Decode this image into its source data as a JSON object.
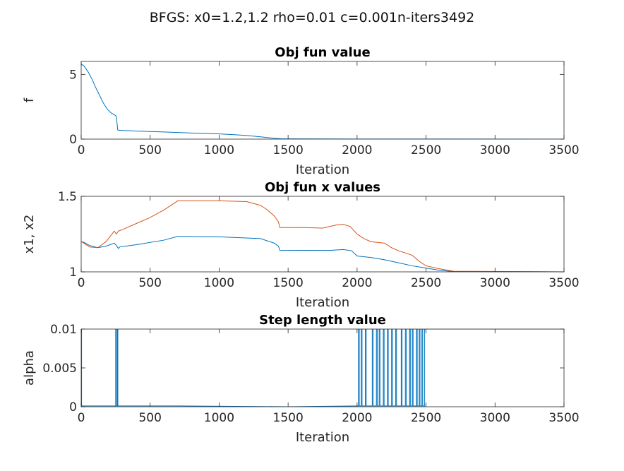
{
  "figure": {
    "suptitle": "BFGS: x0=1.2,1.2 rho=0.01 c=0.001n-iters3492"
  },
  "colors": {
    "series1": "#0072bd",
    "series2": "#d95319",
    "axis": "#262626"
  },
  "chart_data": [
    {
      "type": "line",
      "title": "Obj fun value",
      "xlabel": "Iteration",
      "ylabel": "f",
      "xlim": [
        0,
        3500
      ],
      "ylim": [
        0,
        6
      ],
      "xticks": [
        0,
        500,
        1000,
        1500,
        2000,
        2500,
        3000,
        3500
      ],
      "xtick_labels": [
        "0",
        "500",
        "1000",
        "1500",
        "2000",
        "2500",
        "3000",
        "3500"
      ],
      "yticks": [
        0,
        5
      ],
      "ytick_labels": [
        "0",
        "5"
      ],
      "series": [
        {
          "color": "#0072bd",
          "x": [
            0,
            20,
            50,
            80,
            100,
            130,
            160,
            190,
            220,
            245,
            250,
            255,
            265,
            280,
            400,
            600,
            800,
            1000,
            1100,
            1200,
            1300,
            1400,
            1450,
            1500,
            2000,
            3500
          ],
          "y": [
            5.8,
            5.65,
            5.2,
            4.6,
            4.1,
            3.45,
            2.8,
            2.3,
            2.0,
            1.85,
            1.8,
            1.75,
            0.7,
            0.68,
            0.62,
            0.55,
            0.47,
            0.4,
            0.35,
            0.28,
            0.18,
            0.06,
            0.03,
            0.02,
            0.01,
            0.0
          ]
        }
      ]
    },
    {
      "type": "line",
      "title": "Obj fun x values",
      "xlabel": "Iteration",
      "ylabel": "x1, x2",
      "xlim": [
        0,
        3500
      ],
      "ylim": [
        1,
        1.5
      ],
      "xticks": [
        0,
        500,
        1000,
        1500,
        2000,
        2500,
        3000,
        3500
      ],
      "xtick_labels": [
        "0",
        "500",
        "1000",
        "1500",
        "2000",
        "2500",
        "3000",
        "3500"
      ],
      "yticks": [
        1,
        1.5
      ],
      "ytick_labels": [
        "1",
        "1.5"
      ],
      "series": [
        {
          "color": "#0072bd",
          "x": [
            0,
            20,
            60,
            120,
            180,
            240,
            250,
            270,
            280,
            400,
            600,
            700,
            1000,
            1300,
            1400,
            1430,
            1440,
            1800,
            1900,
            1960,
            2000,
            2100,
            2200,
            2300,
            2400,
            2500,
            2600,
            2700,
            3500
          ],
          "y": [
            1.2,
            1.195,
            1.175,
            1.16,
            1.17,
            1.19,
            1.18,
            1.155,
            1.165,
            1.18,
            1.21,
            1.235,
            1.232,
            1.22,
            1.19,
            1.17,
            1.143,
            1.142,
            1.148,
            1.14,
            1.105,
            1.095,
            1.08,
            1.06,
            1.04,
            1.025,
            1.01,
            1.002,
            1.0
          ]
        },
        {
          "color": "#d95319",
          "x": [
            0,
            20,
            60,
            120,
            180,
            240,
            255,
            270,
            300,
            400,
            500,
            600,
            700,
            1000,
            1200,
            1300,
            1350,
            1400,
            1430,
            1440,
            1600,
            1750,
            1800,
            1850,
            1900,
            1950,
            2000,
            2050,
            2100,
            2200,
            2250,
            2300,
            2400,
            2450,
            2500,
            2600,
            2700,
            3500
          ],
          "y": [
            1.2,
            1.19,
            1.165,
            1.16,
            1.2,
            1.27,
            1.25,
            1.27,
            1.28,
            1.32,
            1.36,
            1.41,
            1.47,
            1.47,
            1.465,
            1.44,
            1.41,
            1.37,
            1.33,
            1.293,
            1.293,
            1.29,
            1.3,
            1.31,
            1.315,
            1.3,
            1.25,
            1.22,
            1.2,
            1.19,
            1.16,
            1.14,
            1.11,
            1.07,
            1.04,
            1.02,
            1.004,
            1.0
          ]
        }
      ]
    },
    {
      "type": "line",
      "title": "Step length value",
      "xlabel": "Iteration",
      "ylabel": "alpha",
      "xlim": [
        0,
        3500
      ],
      "ylim": [
        0,
        0.01
      ],
      "xticks": [
        0,
        500,
        1000,
        1500,
        2000,
        2500,
        3000,
        3500
      ],
      "xtick_labels": [
        "0",
        "500",
        "1000",
        "1500",
        "2000",
        "2500",
        "3000",
        "3500"
      ],
      "yticks": [
        0,
        0.005,
        0.01
      ],
      "ytick_labels": [
        "0",
        "0.005",
        "0.01"
      ],
      "series": [
        {
          "color": "#0072bd",
          "x": [
            0,
            3,
            3,
            8,
            250,
            250,
            254,
            254,
            258,
            262,
            262,
            266,
            266,
            700,
            1500,
            2000,
            2010,
            2010,
            2016,
            2016,
            2030,
            2030,
            2036,
            2036,
            2060,
            2060,
            2066,
            2066,
            2110,
            2110,
            2116,
            2116,
            2140,
            2140,
            2146,
            2146,
            2160,
            2160,
            2166,
            2166,
            2190,
            2190,
            2196,
            2196,
            2220,
            2220,
            2226,
            2226,
            2250,
            2250,
            2256,
            2256,
            2280,
            2280,
            2286,
            2286,
            2320,
            2320,
            2326,
            2326,
            2350,
            2350,
            2356,
            2356,
            2380,
            2380,
            2386,
            2386,
            2400,
            2400,
            2406,
            2406,
            2430,
            2430,
            2436,
            2436,
            2450,
            2450,
            2456,
            2456,
            2470,
            2470,
            2476,
            2476,
            2490,
            2490,
            3500
          ],
          "y": [
            0.01,
            0.01,
            0.0001,
            0.0001,
            0.0001,
            0.01,
            0.01,
            0.0001,
            0.0001,
            0.0001,
            0.01,
            0.01,
            0.0001,
            0.0001,
            0.0,
            0.0001,
            0.0001,
            0.01,
            0.01,
            0.0001,
            0.0001,
            0.01,
            0.01,
            0.0001,
            0.0001,
            0.01,
            0.01,
            0.0001,
            0.0001,
            0.01,
            0.01,
            0.0001,
            0.0001,
            0.01,
            0.01,
            0.0001,
            0.0001,
            0.01,
            0.01,
            0.0001,
            0.0001,
            0.01,
            0.01,
            0.0001,
            0.0001,
            0.01,
            0.01,
            0.0001,
            0.0001,
            0.01,
            0.01,
            0.0001,
            0.0001,
            0.01,
            0.01,
            0.0001,
            0.0001,
            0.01,
            0.01,
            0.0001,
            0.0001,
            0.01,
            0.01,
            0.0001,
            0.0001,
            0.01,
            0.01,
            0.0001,
            0.0001,
            0.01,
            0.01,
            0.0001,
            0.0001,
            0.01,
            0.01,
            0.0001,
            0.0001,
            0.01,
            0.01,
            0.0001,
            0.0001,
            0.01,
            0.01,
            0.0001,
            0.0001,
            0.01,
            0.01
          ]
        }
      ]
    }
  ]
}
